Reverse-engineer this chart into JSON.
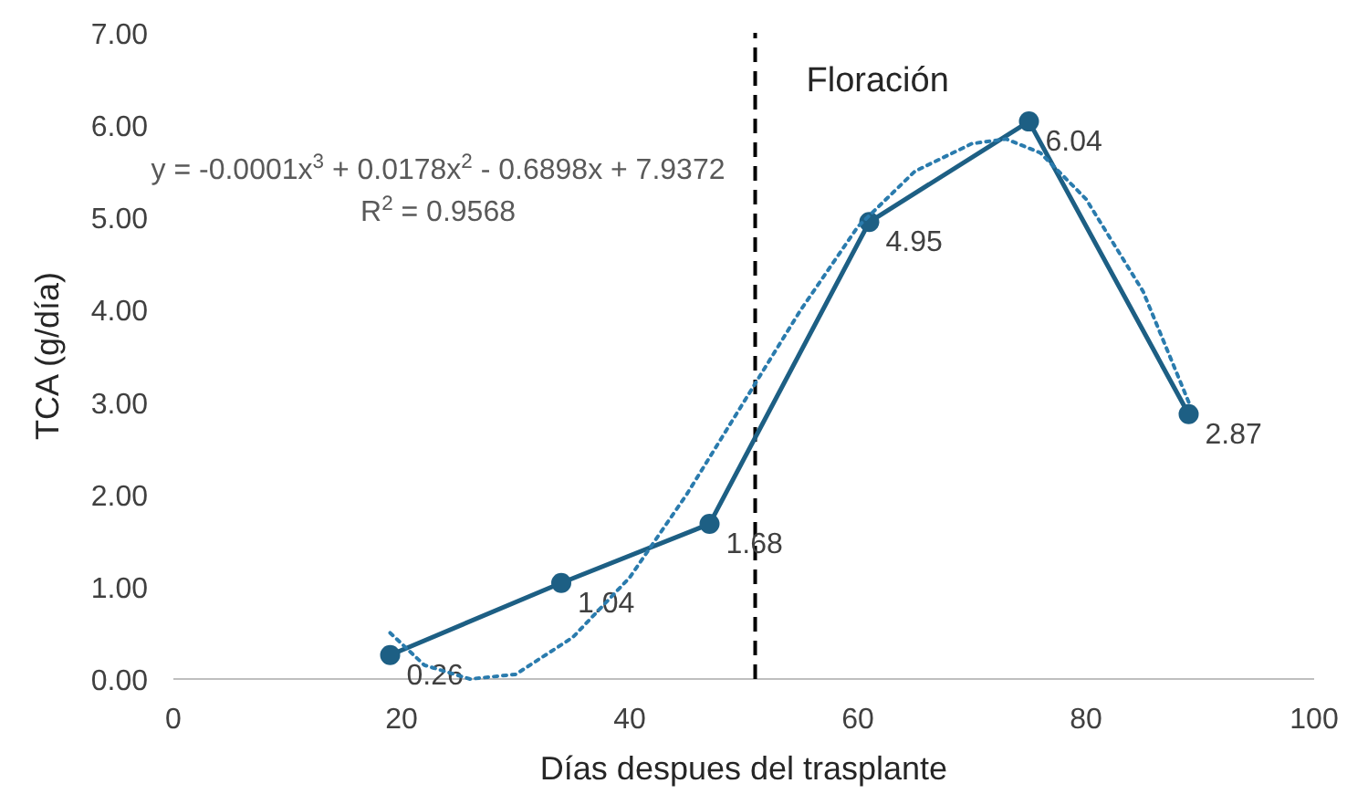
{
  "chart_data": {
    "type": "line",
    "xlabel": "Días despues del trasplante",
    "ylabel": "TCA (g/día)",
    "xlim": [
      0,
      100
    ],
    "xticks": [
      0,
      20,
      40,
      60,
      80,
      100
    ],
    "ylim": [
      0,
      7
    ],
    "yticks": [
      {
        "value": 0,
        "label": "0.00"
      },
      {
        "value": 1,
        "label": "1.00"
      },
      {
        "value": 2,
        "label": "2.00"
      },
      {
        "value": 3,
        "label": "3.00"
      },
      {
        "value": 4,
        "label": "4.00"
      },
      {
        "value": 5,
        "label": "5.00"
      },
      {
        "value": 6,
        "label": "6.00"
      },
      {
        "value": 7,
        "label": "7.00"
      }
    ],
    "grid": false,
    "series": [
      {
        "color": "#1d5f84",
        "x": [
          19,
          34,
          47,
          61,
          75,
          89
        ],
        "values": [
          0.26,
          1.04,
          1.68,
          4.95,
          6.04,
          2.87
        ],
        "value_labels": [
          "0.26",
          "1.04",
          "1.68",
          "4.95",
          "6.04",
          "2.87"
        ],
        "marker": "circle",
        "line_style": "solid"
      },
      {
        "color": "#2a7bad",
        "x": [
          19,
          22,
          26,
          30,
          35,
          40,
          45,
          50,
          55,
          60,
          65,
          70,
          73,
          76,
          80,
          85,
          89
        ],
        "values": [
          0.5,
          0.15,
          0.0,
          0.05,
          0.45,
          1.1,
          2.0,
          3.0,
          4.0,
          4.9,
          5.5,
          5.8,
          5.85,
          5.7,
          5.2,
          4.2,
          3.0
        ],
        "marker": "none",
        "line_style": "dotted"
      }
    ],
    "ref_lines": [
      {
        "axis": "x",
        "value": 51,
        "label": "Floración",
        "line_style": "dashed",
        "color": "#000000"
      }
    ],
    "annotations": [
      {
        "text": "y = -0.0001x$^{3}$ + 0.0178x$^{2}$ - 0.6898x + 7.9372"
      },
      {
        "text": "R$^{2}$ = 0.9568"
      }
    ]
  }
}
